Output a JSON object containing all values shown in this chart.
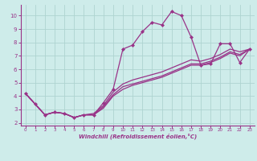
{
  "xlabel": "Windchill (Refroidissement éolien,°C)",
  "ylabel": "",
  "background_color": "#ceecea",
  "grid_color": "#aed4d0",
  "line_color": "#993388",
  "marker": "D",
  "markersize": 2,
  "linewidth": 0.9,
  "xlim": [
    -0.5,
    23.5
  ],
  "ylim": [
    1.8,
    10.8
  ],
  "yticks": [
    2,
    3,
    4,
    5,
    6,
    7,
    8,
    9,
    10
  ],
  "xticks": [
    0,
    1,
    2,
    3,
    4,
    5,
    6,
    7,
    8,
    9,
    10,
    11,
    12,
    13,
    14,
    15,
    16,
    17,
    18,
    19,
    20,
    21,
    22,
    23
  ],
  "series1_x": [
    0,
    1,
    2,
    3,
    4,
    5,
    6,
    7,
    8,
    9,
    10,
    11,
    12,
    13,
    14,
    15,
    16,
    17,
    18,
    19,
    20,
    21,
    22,
    23
  ],
  "series1_y": [
    4.2,
    3.4,
    2.6,
    2.8,
    2.7,
    2.4,
    2.6,
    2.6,
    3.5,
    4.5,
    7.5,
    7.8,
    8.8,
    9.5,
    9.3,
    10.3,
    10.0,
    8.4,
    6.3,
    6.4,
    7.9,
    7.9,
    6.5,
    7.5
  ],
  "series2_x": [
    0,
    1,
    2,
    3,
    4,
    5,
    6,
    7,
    8,
    9,
    10,
    11,
    12,
    13,
    14,
    15,
    16,
    17,
    18,
    19,
    20,
    21,
    22,
    23
  ],
  "series2_y": [
    4.2,
    3.4,
    2.6,
    2.8,
    2.7,
    2.4,
    2.6,
    2.6,
    3.1,
    4.0,
    4.5,
    4.8,
    5.0,
    5.2,
    5.4,
    5.7,
    6.0,
    6.3,
    6.3,
    6.5,
    6.8,
    7.2,
    7.0,
    7.5
  ],
  "series3_x": [
    0,
    1,
    2,
    3,
    4,
    5,
    6,
    7,
    8,
    9,
    10,
    11,
    12,
    13,
    14,
    15,
    16,
    17,
    18,
    19,
    20,
    21,
    22,
    23
  ],
  "series3_y": [
    4.2,
    3.4,
    2.6,
    2.8,
    2.7,
    2.4,
    2.6,
    2.6,
    3.2,
    4.1,
    4.7,
    4.9,
    5.1,
    5.3,
    5.5,
    5.8,
    6.1,
    6.4,
    6.4,
    6.6,
    6.9,
    7.3,
    7.1,
    7.5
  ],
  "series4_x": [
    0,
    1,
    2,
    3,
    4,
    5,
    6,
    7,
    8,
    9,
    10,
    11,
    12,
    13,
    14,
    15,
    16,
    17,
    18,
    19,
    20,
    21,
    22,
    23
  ],
  "series4_y": [
    4.2,
    3.4,
    2.6,
    2.8,
    2.7,
    2.4,
    2.6,
    2.7,
    3.3,
    4.3,
    4.9,
    5.2,
    5.4,
    5.6,
    5.8,
    6.1,
    6.4,
    6.7,
    6.6,
    6.8,
    7.1,
    7.5,
    7.3,
    7.5
  ]
}
